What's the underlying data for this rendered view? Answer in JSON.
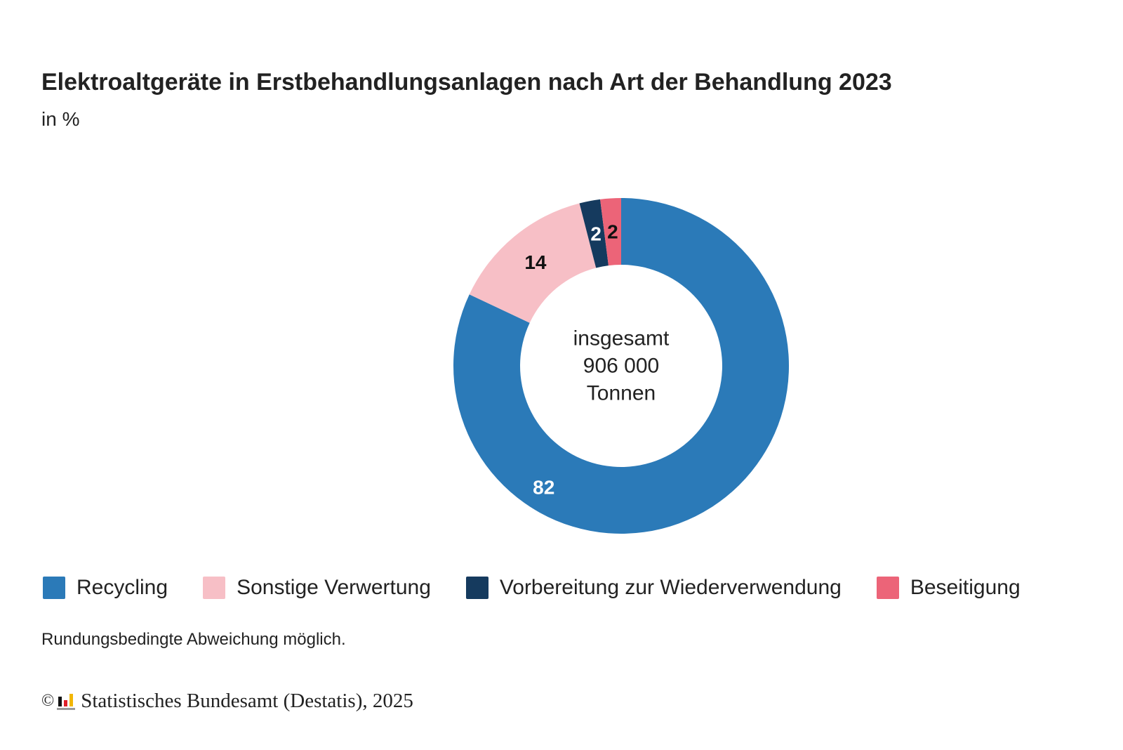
{
  "header": {
    "title": "Elektroaltgeräte in Erstbehandlungsanlagen nach Art der Behandlung 2023",
    "subtitle": "in %"
  },
  "chart_data": {
    "type": "pie",
    "variant": "donut",
    "title": "Elektroaltgeräte in Erstbehandlungsanlagen nach Art der Behandlung 2023",
    "subtitle": "in %",
    "center_label": [
      "insgesamt",
      "906 000",
      "Tonnen"
    ],
    "start_angle": "12 o'clock, clockwise",
    "categories": [
      "Recycling",
      "Sonstige Verwertung",
      "Vorbereitung zur Wiederverwendung",
      "Beseitigung"
    ],
    "values": [
      82,
      14,
      2,
      2
    ],
    "colors": [
      "#2b7ab8",
      "#f7bfc6",
      "#153a5e",
      "#ec6478"
    ],
    "label_colors": [
      "#ffffff",
      "#111111",
      "#ffffff",
      "#111111"
    ],
    "legend_position": "bottom"
  },
  "legend": {
    "items": [
      {
        "label": "Recycling",
        "color": "#2b7ab8"
      },
      {
        "label": "Sonstige Verwertung",
        "color": "#f7bfc6"
      },
      {
        "label": "Vorbereitung zur Wiederverwendung",
        "color": "#153a5e"
      },
      {
        "label": "Beseitigung",
        "color": "#ec6478"
      }
    ]
  },
  "footer": {
    "note": "Rundungsbedingte Abweichung möglich.",
    "copyright_symbol": "©",
    "source": "Statistisches Bundesamt (Destatis), 2025",
    "logo_icon": "destatis-logo-icon"
  }
}
